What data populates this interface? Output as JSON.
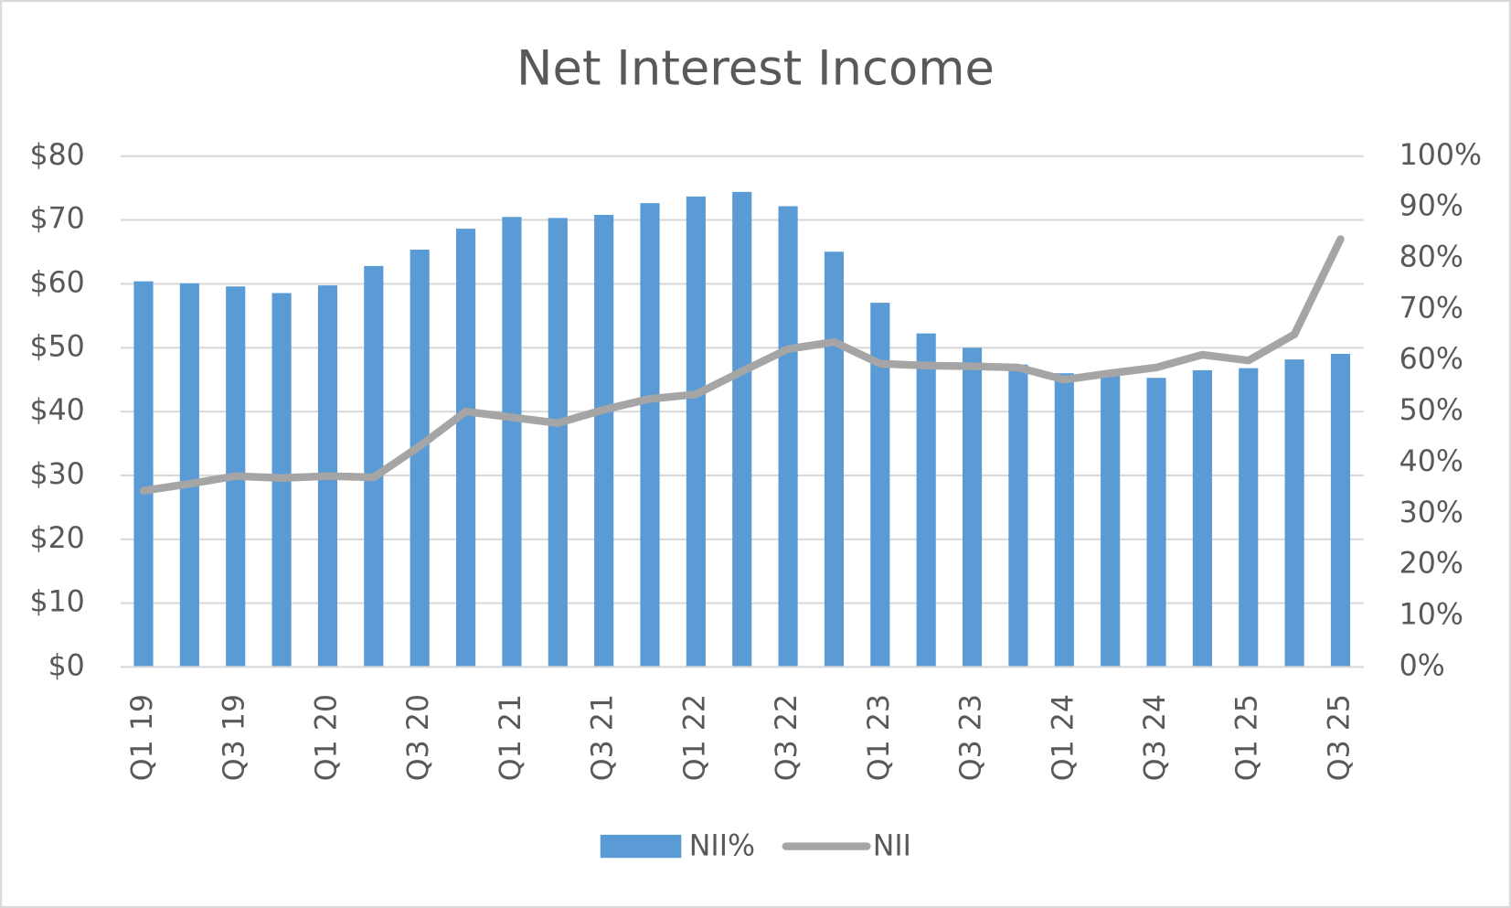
{
  "chart_data": {
    "type": "bar-line",
    "title": "Net Interest Income",
    "categories": [
      "Q1 19",
      null,
      "Q3 19",
      null,
      "Q1 20",
      null,
      "Q3 20",
      null,
      "Q1 21",
      null,
      "Q3 21",
      null,
      "Q1 22",
      null,
      "Q3 22",
      null,
      "Q1 23",
      null,
      "Q3 23",
      null,
      "Q1 24",
      null,
      "Q3 24",
      null,
      "Q1 25",
      null,
      "Q3 25"
    ],
    "series": [
      {
        "name": "NII%",
        "type": "bar",
        "axis": "y2",
        "color": "#5b9bd5",
        "values": [
          75.5,
          75.1,
          74.5,
          73.2,
          74.7,
          78.5,
          81.7,
          85.8,
          88.1,
          87.9,
          88.5,
          90.8,
          92.1,
          93.0,
          90.2,
          81.3,
          71.3,
          65.3,
          62.5,
          59.2,
          57.5,
          57.2,
          56.6,
          58.1,
          58.5,
          60.2,
          61.3
        ]
      },
      {
        "name": "NII",
        "type": "line",
        "axis": "y",
        "color": "#a5a5a5",
        "values": [
          27.6,
          28.7,
          29.9,
          29.6,
          29.9,
          29.7,
          34.6,
          40.0,
          39.1,
          38.2,
          40.3,
          42.0,
          42.7,
          46.3,
          49.8,
          50.9,
          47.5,
          47.2,
          47.1,
          46.9,
          45.0,
          46.0,
          46.9,
          48.9,
          48.0,
          52.1,
          67.0
        ]
      }
    ],
    "ylim": [
      0,
      80
    ],
    "yticks": [
      {
        "value": 0,
        "label": "$0"
      },
      {
        "value": 10,
        "label": "$10"
      },
      {
        "value": 20,
        "label": "$20"
      },
      {
        "value": 30,
        "label": "$30"
      },
      {
        "value": 40,
        "label": "$40"
      },
      {
        "value": 50,
        "label": "$50"
      },
      {
        "value": 60,
        "label": "$60"
      },
      {
        "value": 70,
        "label": "$70"
      },
      {
        "value": 80,
        "label": "$80"
      }
    ],
    "y2lim": [
      0,
      100
    ],
    "y2ticks": [
      {
        "value": 0,
        "label": "0%"
      },
      {
        "value": 10,
        "label": "10%"
      },
      {
        "value": 20,
        "label": "20%"
      },
      {
        "value": 30,
        "label": "30%"
      },
      {
        "value": 40,
        "label": "40%"
      },
      {
        "value": 50,
        "label": "50%"
      },
      {
        "value": 60,
        "label": "60%"
      },
      {
        "value": 70,
        "label": "70%"
      },
      {
        "value": 80,
        "label": "80%"
      },
      {
        "value": 90,
        "label": "90%"
      },
      {
        "value": 100,
        "label": "100%"
      }
    ],
    "grid": true,
    "legend": "bottom"
  }
}
